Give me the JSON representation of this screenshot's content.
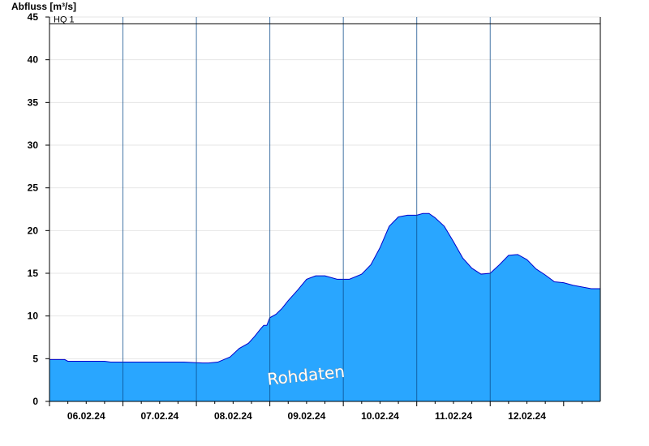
{
  "chart_data": {
    "type": "area",
    "ylabel": "Abfluss [m³/s]",
    "ylim": [
      0,
      45
    ],
    "yticks": [
      0,
      5,
      10,
      15,
      20,
      25,
      30,
      35,
      40,
      45
    ],
    "xticks": [
      "06.02.24",
      "07.02.24",
      "08.02.24",
      "09.02.24",
      "10.02.24",
      "11.02.24",
      "12.02.24"
    ],
    "day_boundaries": [
      "06.02.24 12:00",
      "07.02.24 12:00",
      "08.02.24 12:00",
      "09.02.24 12:00",
      "10.02.24 12:00",
      "11.02.24 12:00"
    ],
    "x_range": [
      "05.02.24 12:00",
      "12.02.24 23:59"
    ],
    "grid": true,
    "fill_color": "#29a6ff",
    "line_color": "#0000cc",
    "reference_line": {
      "label": "HQ 1",
      "value": 44.2
    },
    "watermark": "Rohdaten",
    "series": [
      {
        "x": [
          "05.02.24 12:00",
          "05.02.24 17:00",
          "05.02.24 18:00",
          "06.02.24 06:00",
          "06.02.24 08:00",
          "06.02.24 18:00",
          "07.02.24 06:00",
          "07.02.24 08:00",
          "07.02.24 14:00",
          "07.02.24 16:00",
          "07.02.24 19:00",
          "07.02.24 23:00",
          "08.02.24 02:00",
          "08.02.24 05:00",
          "08.02.24 07:00",
          "08.02.24 09:00",
          "08.02.24 10:00",
          "08.02.24 11:00",
          "08.02.24 12:00",
          "08.02.24 14:00",
          "08.02.24 16:00",
          "08.02.24 18:00",
          "08.02.24 21:00",
          "09.02.24 00:00",
          "09.02.24 03:00",
          "09.02.24 06:00",
          "09.02.24 10:00",
          "09.02.24 14:00",
          "09.02.24 18:00",
          "09.02.24 21:00",
          "10.02.24 00:00",
          "10.02.24 03:00",
          "10.02.24 06:00",
          "10.02.24 09:00",
          "10.02.24 12:00",
          "10.02.24 14:00",
          "10.02.24 16:00",
          "10.02.24 18:00",
          "10.02.24 21:00",
          "11.02.24 00:00",
          "11.02.24 03:00",
          "11.02.24 06:00",
          "11.02.24 09:00",
          "11.02.24 12:00",
          "11.02.24 15:00",
          "11.02.24 18:00",
          "11.02.24 21:00",
          "12.02.24 00:00",
          "12.02.24 03:00",
          "12.02.24 06:00",
          "12.02.24 09:00",
          "12.02.24 12:00",
          "12.02.24 15:00",
          "12.02.24 18:00",
          "12.02.24 21:00",
          "12.02.24 23:59"
        ],
        "values": [
          4.9,
          4.9,
          4.7,
          4.7,
          4.6,
          4.6,
          4.6,
          4.6,
          4.5,
          4.5,
          4.6,
          5.2,
          6.2,
          6.8,
          7.6,
          8.5,
          8.9,
          8.9,
          9.8,
          10.2,
          10.9,
          11.8,
          13.0,
          14.3,
          14.7,
          14.7,
          14.3,
          14.3,
          14.9,
          16.0,
          18.0,
          20.5,
          21.6,
          21.8,
          21.8,
          22.0,
          22.0,
          21.5,
          20.5,
          18.7,
          16.8,
          15.6,
          14.9,
          15.0,
          16.0,
          17.1,
          17.2,
          16.6,
          15.5,
          14.8,
          14.0,
          13.9,
          13.6,
          13.4,
          13.2,
          13.2
        ]
      }
    ]
  }
}
